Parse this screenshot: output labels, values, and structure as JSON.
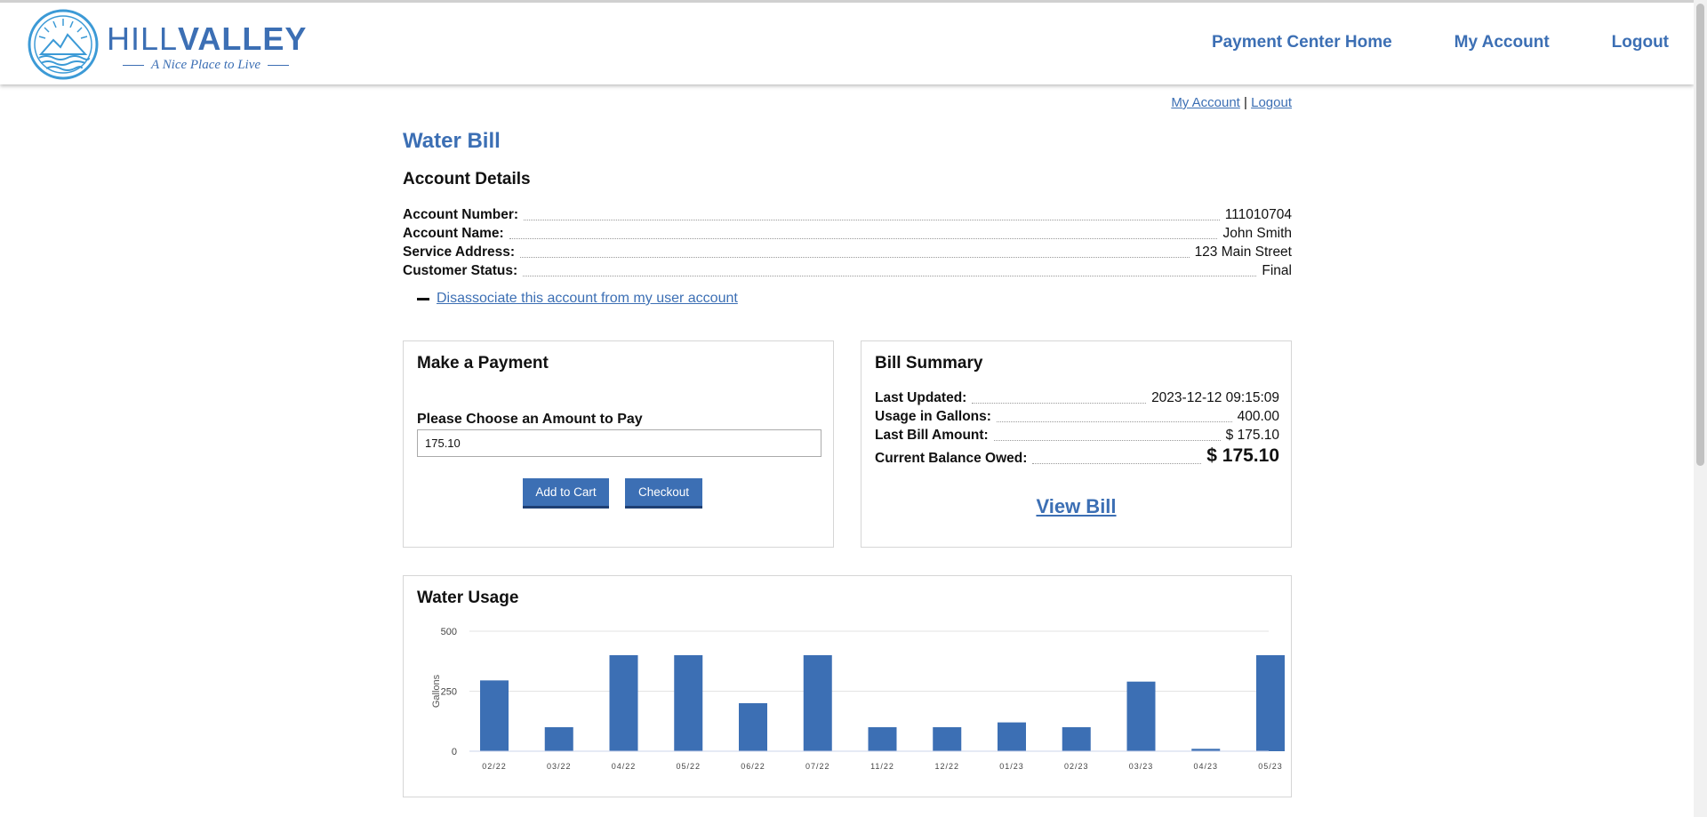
{
  "brand": {
    "name_part1": "HILL",
    "name_part2": "VALLEY",
    "tagline": "A Nice Place to Live"
  },
  "topnav": {
    "payment_center_home": "Payment Center Home",
    "my_account": "My Account",
    "logout": "Logout"
  },
  "sublinks": {
    "my_account": "My Account",
    "separator": "|",
    "logout": "Logout"
  },
  "page": {
    "title": "Water Bill",
    "section_title": "Account Details"
  },
  "account": {
    "rows": [
      {
        "label": "Account Number:",
        "value": "111010704"
      },
      {
        "label": "Account Name:",
        "value": "John Smith"
      },
      {
        "label": "Service Address:",
        "value": "123 Main Street"
      },
      {
        "label": "Customer Status:",
        "value": "Final"
      }
    ],
    "disassociate_link": "Disassociate this account from my user account"
  },
  "payment": {
    "title": "Make a Payment",
    "amount_label": "Please Choose an Amount to Pay",
    "amount_value": "175.10",
    "add_to_cart": "Add to Cart",
    "checkout": "Checkout"
  },
  "bill_summary": {
    "title": "Bill Summary",
    "rows": [
      {
        "label": "Last Updated:",
        "value": "2023-12-12 09:15:09"
      },
      {
        "label": "Usage in Gallons:",
        "value": "400.00"
      },
      {
        "label": "Last Bill Amount:",
        "value": "$ 175.10"
      },
      {
        "label": "Current Balance Owed:",
        "value": "$ 175.10"
      }
    ],
    "view_bill": "View Bill"
  },
  "usage": {
    "title": "Water Usage"
  },
  "colors": {
    "brand_blue": "#3c6fb4",
    "button_shadow": "#1e3f73"
  },
  "chart_data": {
    "type": "bar",
    "title": "Water Usage",
    "xlabel": "",
    "ylabel": "Gallons",
    "ylim": [
      0,
      500
    ],
    "yticks": [
      0,
      250,
      500
    ],
    "grid": true,
    "categories": [
      "02/22",
      "03/22",
      "04/22",
      "05/22",
      "06/22",
      "07/22",
      "11/22",
      "12/22",
      "01/23",
      "02/23",
      "03/23",
      "04/23",
      "05/23"
    ],
    "values": [
      295,
      100,
      400,
      400,
      200,
      400,
      100,
      100,
      120,
      100,
      290,
      10,
      400
    ],
    "color": "#3c6fb4"
  }
}
